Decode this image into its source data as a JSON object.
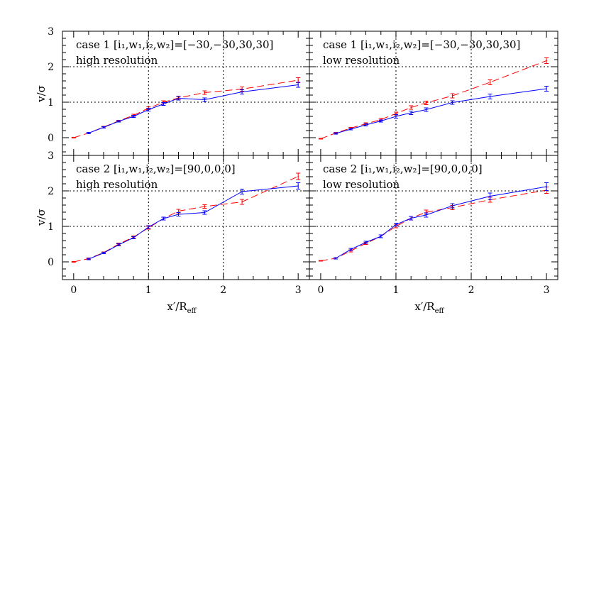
{
  "chart_data": [
    {
      "type": "line",
      "case_label": "case 1",
      "params": "[i₁,w₁,i₂,w₂]=[−30,−30,30,30]",
      "resolution": "high resolution",
      "xlim": [
        -0.15,
        3.15
      ],
      "ylim": [
        -0.5,
        3
      ],
      "ref_lines": {
        "x": [
          1,
          2
        ],
        "y": [
          1,
          2
        ]
      },
      "series": [
        {
          "color": "#ff0000",
          "style": "dashed",
          "x": [
            0,
            0.2,
            0.4,
            0.6,
            0.8,
            1.0,
            1.2,
            1.4,
            1.75,
            2.25,
            3.0
          ],
          "y": [
            0.0,
            0.13,
            0.3,
            0.47,
            0.63,
            0.83,
            1.0,
            1.12,
            1.27,
            1.37,
            1.62
          ],
          "err": [
            0.01,
            0.02,
            0.02,
            0.02,
            0.03,
            0.04,
            0.04,
            0.05,
            0.05,
            0.06,
            0.07
          ]
        },
        {
          "color": "#0000ff",
          "style": "solid",
          "x": [
            0.2,
            0.4,
            0.6,
            0.8,
            1.0,
            1.2,
            1.4,
            1.75,
            2.25,
            3.0
          ],
          "y": [
            0.13,
            0.29,
            0.46,
            0.6,
            0.79,
            0.95,
            1.11,
            1.07,
            1.29,
            1.49
          ],
          "err": [
            0.02,
            0.02,
            0.02,
            0.03,
            0.04,
            0.04,
            0.05,
            0.05,
            0.06,
            0.07
          ]
        }
      ]
    },
    {
      "type": "line",
      "case_label": "case 1",
      "params": "[i₁,w₁,i₂,w₂]=[−30,−30,30,30]",
      "resolution": "low resolution",
      "xlim": [
        -0.15,
        3.15
      ],
      "ylim": [
        -0.5,
        3
      ],
      "ref_lines": {
        "x": [
          1,
          2
        ],
        "y": [
          1,
          2
        ]
      },
      "series": [
        {
          "color": "#ff0000",
          "style": "dashed",
          "x": [
            0,
            0.2,
            0.4,
            0.6,
            0.8,
            1.0,
            1.2,
            1.4,
            1.75,
            2.25,
            3.0
          ],
          "y": [
            -0.03,
            0.13,
            0.27,
            0.39,
            0.51,
            0.68,
            0.85,
            0.98,
            1.18,
            1.56,
            2.17
          ],
          "err": [
            0.01,
            0.02,
            0.02,
            0.03,
            0.03,
            0.04,
            0.05,
            0.05,
            0.06,
            0.07,
            0.08
          ]
        },
        {
          "color": "#0000ff",
          "style": "solid",
          "x": [
            0.2,
            0.4,
            0.6,
            0.8,
            1.0,
            1.2,
            1.4,
            1.75,
            2.25,
            3.0
          ],
          "y": [
            0.12,
            0.24,
            0.36,
            0.47,
            0.6,
            0.7,
            0.79,
            0.99,
            1.16,
            1.38
          ],
          "err": [
            0.02,
            0.02,
            0.03,
            0.03,
            0.05,
            0.05,
            0.05,
            0.05,
            0.07,
            0.07
          ]
        }
      ]
    },
    {
      "type": "line",
      "case_label": "case 2",
      "params": "[i₁,w₁,i₂,w₂]=[90,0,0,0]",
      "resolution": "high resolution",
      "xlim": [
        -0.15,
        3.15
      ],
      "ylim": [
        -0.5,
        3
      ],
      "ref_lines": {
        "x": [
          1,
          2
        ],
        "y": [
          1,
          2
        ]
      },
      "series": [
        {
          "color": "#ff0000",
          "style": "dashed",
          "x": [
            0,
            0.2,
            0.4,
            0.6,
            0.8,
            1.0,
            1.2,
            1.4,
            1.75,
            2.25,
            3.0
          ],
          "y": [
            0.0,
            0.09,
            0.26,
            0.5,
            0.7,
            0.96,
            1.22,
            1.43,
            1.56,
            1.69,
            2.41
          ],
          "err": [
            0.01,
            0.02,
            0.02,
            0.03,
            0.03,
            0.04,
            0.04,
            0.05,
            0.05,
            0.07,
            0.09
          ]
        },
        {
          "color": "#0000ff",
          "style": "solid",
          "x": [
            0.2,
            0.4,
            0.6,
            0.8,
            1.0,
            1.2,
            1.4,
            1.75,
            2.25,
            3.0
          ],
          "y": [
            0.08,
            0.25,
            0.48,
            0.68,
            0.98,
            1.22,
            1.34,
            1.39,
            1.98,
            2.14
          ],
          "err": [
            0.02,
            0.02,
            0.03,
            0.03,
            0.04,
            0.04,
            0.05,
            0.05,
            0.07,
            0.09
          ]
        }
      ]
    },
    {
      "type": "line",
      "case_label": "case 2",
      "params": "[i₁,w₁,i₂,w₂]=[90,0,0,0]",
      "resolution": "low resolution",
      "xlim": [
        -0.15,
        3.15
      ],
      "ylim": [
        -0.5,
        3
      ],
      "ref_lines": {
        "x": [
          1,
          2
        ],
        "y": [
          1,
          2
        ]
      },
      "series": [
        {
          "color": "#ff0000",
          "style": "dashed",
          "x": [
            0,
            0.2,
            0.4,
            0.6,
            0.8,
            1.0,
            1.2,
            1.4,
            1.75,
            2.25,
            3.0
          ],
          "y": [
            0.03,
            0.1,
            0.31,
            0.52,
            0.72,
            1.0,
            1.23,
            1.4,
            1.53,
            1.75,
            2.02
          ],
          "err": [
            0.01,
            0.02,
            0.03,
            0.03,
            0.04,
            0.04,
            0.05,
            0.06,
            0.06,
            0.07,
            0.09
          ]
        },
        {
          "color": "#0000ff",
          "style": "solid",
          "x": [
            0.2,
            0.4,
            0.6,
            0.8,
            1.0,
            1.2,
            1.4,
            1.75,
            2.25,
            3.0
          ],
          "y": [
            0.1,
            0.35,
            0.55,
            0.72,
            1.05,
            1.23,
            1.32,
            1.58,
            1.85,
            2.12
          ],
          "err": [
            0.02,
            0.03,
            0.03,
            0.04,
            0.04,
            0.05,
            0.06,
            0.06,
            0.09,
            0.11
          ]
        }
      ]
    }
  ],
  "axes": {
    "ylabel": "v/σ",
    "xlabel_main": "x′/R",
    "xlabel_sub": "eff",
    "xticks": [
      0,
      1,
      2,
      3
    ],
    "yticks": [
      0,
      1,
      2,
      3
    ]
  }
}
